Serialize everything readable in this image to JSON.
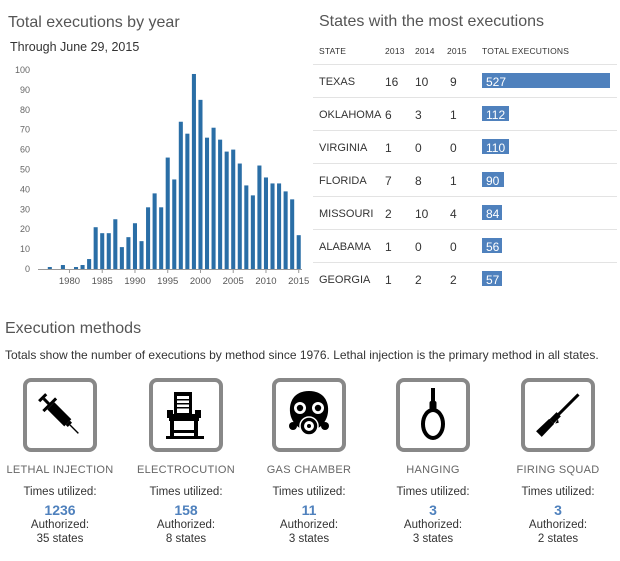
{
  "left_panel": {
    "title": "Total executions by year",
    "subtitle": "Through June 29, 2015"
  },
  "chart_data": {
    "type": "bar",
    "title": "Total executions by year",
    "subtitle": "Through June 29, 2015",
    "xlabel": "",
    "ylabel": "",
    "ylim": [
      0,
      100
    ],
    "y_ticks": [
      0,
      10,
      20,
      30,
      40,
      50,
      60,
      70,
      80,
      90,
      100
    ],
    "x_ticks": [
      1980,
      1985,
      1990,
      1995,
      2000,
      2005,
      2010,
      2015
    ],
    "bar_color": "#2a6ea6",
    "categories": [
      1976,
      1977,
      1978,
      1979,
      1980,
      1981,
      1982,
      1983,
      1984,
      1985,
      1986,
      1987,
      1988,
      1989,
      1990,
      1991,
      1992,
      1993,
      1994,
      1995,
      1996,
      1997,
      1998,
      1999,
      2000,
      2001,
      2002,
      2003,
      2004,
      2005,
      2006,
      2007,
      2008,
      2009,
      2010,
      2011,
      2012,
      2013,
      2014,
      2015
    ],
    "values": [
      0,
      1,
      0,
      2,
      0,
      1,
      2,
      5,
      21,
      18,
      18,
      25,
      11,
      16,
      23,
      14,
      31,
      38,
      31,
      56,
      45,
      74,
      68,
      98,
      85,
      66,
      71,
      65,
      59,
      60,
      53,
      42,
      37,
      52,
      46,
      43,
      43,
      39,
      35,
      17
    ]
  },
  "right_panel": {
    "title": "States with the most executions",
    "headers": {
      "state": "STATE",
      "y2013": "2013",
      "y2014": "2014",
      "y2015": "2015",
      "total": "TOTAL EXECUTIONS"
    },
    "bar_color": "#4f81bd",
    "rows": [
      {
        "state": "TEXAS",
        "y2013": "16",
        "y2014": "10",
        "y2015": "9",
        "total": 527
      },
      {
        "state": "OKLAHOMA",
        "y2013": "6",
        "y2014": "3",
        "y2015": "1",
        "total": 112
      },
      {
        "state": "VIRGINIA",
        "y2013": "1",
        "y2014": "0",
        "y2015": "0",
        "total": 110
      },
      {
        "state": "FLORIDA",
        "y2013": "7",
        "y2014": "8",
        "y2015": "1",
        "total": 90
      },
      {
        "state": "MISSOURI",
        "y2013": "2",
        "y2014": "10",
        "y2015": "4",
        "total": 84
      },
      {
        "state": "ALABAMA",
        "y2013": "1",
        "y2014": "0",
        "y2015": "0",
        "total": 56
      },
      {
        "state": "GEORGIA",
        "y2013": "1",
        "y2014": "2",
        "y2015": "2",
        "total": 57
      }
    ]
  },
  "methods": {
    "title": "Execution methods",
    "description": "Totals show the number of executions by method since 1976. Lethal injection is the primary method in all states.",
    "items": [
      {
        "icon": "syringe-icon",
        "name": "LETHAL INJECTION",
        "used_label": "Times utilized:",
        "used": "1236",
        "auth_label": "Authorized:",
        "auth": "35 states"
      },
      {
        "icon": "electric-chair-icon",
        "name": "ELECTROCUTION",
        "used_label": "Times utilized:",
        "used": "158",
        "auth_label": "Authorized:",
        "auth": "8 states"
      },
      {
        "icon": "gas-mask-icon",
        "name": "GAS CHAMBER",
        "used_label": "Times utilized:",
        "used": "11",
        "auth_label": "Authorized:",
        "auth": "3 states"
      },
      {
        "icon": "noose-icon",
        "name": "HANGING",
        "used_label": "Times utilized:",
        "used": "3",
        "auth_label": "Authorized:",
        "auth": "3 states"
      },
      {
        "icon": "rifle-icon",
        "name": "FIRING SQUAD",
        "used_label": "Times utilized:",
        "used": "3",
        "auth_label": "Authorized:",
        "auth": "2 states"
      }
    ]
  }
}
